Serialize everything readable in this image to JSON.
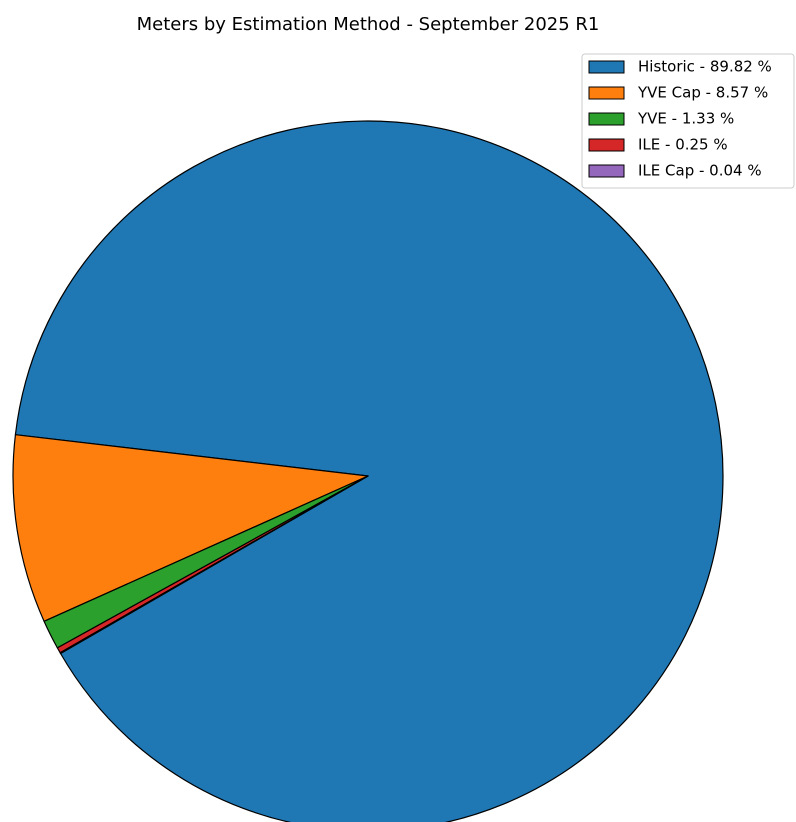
{
  "chart_data": {
    "type": "pie",
    "title": "Meters by Estimation Method - September 2025 R1",
    "categories": [
      "Historic - 89.82 %",
      "YVE Cap - 8.57 %",
      "YVE - 1.33 %",
      "ILE - 0.25 %",
      "ILE Cap - 0.04 %"
    ],
    "values": [
      89.82,
      8.57,
      1.33,
      0.25,
      0.04
    ],
    "colors": [
      "#1f77b4",
      "#ff7f0e",
      "#2ca02c",
      "#d62728",
      "#9467bd"
    ],
    "legend": "upper right"
  }
}
